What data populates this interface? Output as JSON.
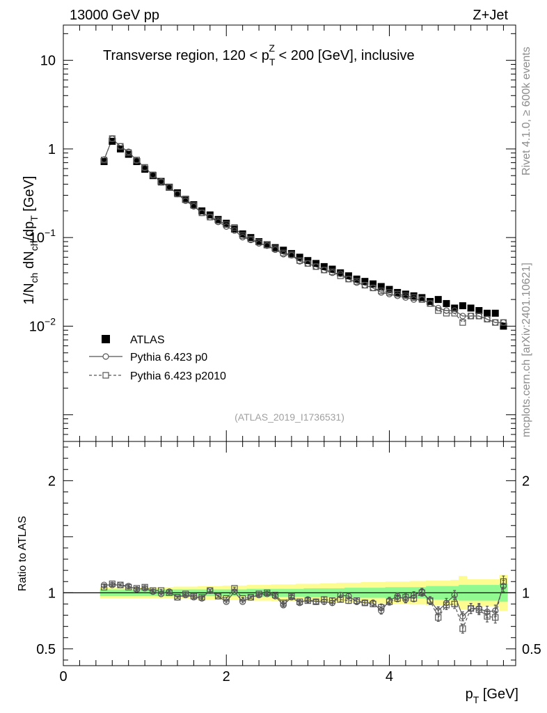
{
  "header": {
    "left": "13000 GeV pp",
    "right": "Z+Jet",
    "region_pre": "Transverse region, 120 < p",
    "region_sub": "T",
    "region_sup": "Z",
    "region_post": " < 200 [GeV], inclusive",
    "analysis": "(ATLAS_2019_I1736531)"
  },
  "sidebar": {
    "rivet": "Rivet 4.1.0, ≥ 600k events",
    "mcplots": "mcplots.cern.ch [arXiv:2401.10621]"
  },
  "colors": {
    "band_inner": "#90f990",
    "band_outer": "#fcfc90",
    "data": "#000000",
    "mc": "#555555"
  },
  "chart_data": [
    {
      "type": "scatter",
      "panel": "main",
      "ylabel_main": "1/N",
      "ylabel_sub1": "ch",
      "ylabel_mid": " dN",
      "ylabel_sub2": "ch",
      "ylabel_mid2": "/dp",
      "ylabel_sub3": "T",
      "ylabel_unit": " [GeV]",
      "yscale": "log",
      "ylim": [
        0.0005,
        25
      ],
      "xlim": [
        0,
        5.55
      ],
      "yticks": [
        {
          "v": 10,
          "base": "10",
          "exp": ""
        },
        {
          "v": 1,
          "base": "1",
          "exp": ""
        },
        {
          "v": 0.1,
          "base": "10",
          "exp": "−1"
        },
        {
          "v": 0.01,
          "base": "10",
          "exp": "−2"
        }
      ],
      "legend": {
        "position": "lower-left",
        "entries": [
          "ATLAS",
          "Pythia 6.423 p0",
          "Pythia 6.423 p2010"
        ]
      },
      "x": [
        0.5,
        0.6,
        0.7,
        0.8,
        0.9,
        1.0,
        1.1,
        1.2,
        1.3,
        1.4,
        1.5,
        1.6,
        1.7,
        1.8,
        1.9,
        2.0,
        2.1,
        2.2,
        2.3,
        2.4,
        2.5,
        2.6,
        2.7,
        2.8,
        2.9,
        3.0,
        3.1,
        3.2,
        3.3,
        3.4,
        3.5,
        3.6,
        3.7,
        3.8,
        3.9,
        4.0,
        4.1,
        4.2,
        4.3,
        4.4,
        4.5,
        4.6,
        4.7,
        4.8,
        4.9,
        5.0,
        5.1,
        5.2,
        5.3,
        5.4
      ],
      "series": [
        {
          "name": "ATLAS",
          "marker": "square-filled",
          "values": [
            0.72,
            1.22,
            1.0,
            0.87,
            0.72,
            0.59,
            0.5,
            0.43,
            0.37,
            0.32,
            0.27,
            0.235,
            0.2,
            0.18,
            0.16,
            0.145,
            0.125,
            0.11,
            0.1,
            0.09,
            0.083,
            0.077,
            0.072,
            0.066,
            0.06,
            0.055,
            0.051,
            0.047,
            0.044,
            0.04,
            0.037,
            0.034,
            0.032,
            0.03,
            0.028,
            0.026,
            0.024,
            0.023,
            0.022,
            0.021,
            0.019,
            0.02,
            0.018,
            0.016,
            0.017,
            0.016,
            0.015,
            0.014,
            0.014,
            0.01
          ]
        },
        {
          "name": "Pythia 6.423 p0",
          "marker": "circle-open",
          "line": "solid",
          "values": [
            0.76,
            1.3,
            1.07,
            0.93,
            0.74,
            0.61,
            0.51,
            0.43,
            0.37,
            0.31,
            0.26,
            0.225,
            0.19,
            0.17,
            0.15,
            0.133,
            0.12,
            0.101,
            0.094,
            0.086,
            0.081,
            0.073,
            0.065,
            0.063,
            0.054,
            0.051,
            0.047,
            0.043,
            0.04,
            0.039,
            0.034,
            0.031,
            0.029,
            0.027,
            0.024,
            0.023,
            0.022,
            0.021,
            0.02,
            0.02,
            0.018,
            0.016,
            0.015,
            0.015,
            0.013,
            0.013,
            0.013,
            0.012,
            0.011,
            0.011
          ]
        },
        {
          "name": "Pythia 6.423 p2010",
          "marker": "square-open",
          "line": "dashed",
          "values": [
            0.75,
            1.31,
            1.07,
            0.91,
            0.75,
            0.62,
            0.51,
            0.42,
            0.37,
            0.31,
            0.27,
            0.23,
            0.19,
            0.17,
            0.155,
            0.14,
            0.13,
            0.105,
            0.096,
            0.089,
            0.083,
            0.075,
            0.067,
            0.064,
            0.055,
            0.051,
            0.047,
            0.043,
            0.041,
            0.037,
            0.034,
            0.032,
            0.029,
            0.027,
            0.025,
            0.024,
            0.023,
            0.022,
            0.021,
            0.02,
            0.018,
            0.015,
            0.014,
            0.014,
            0.011,
            0.013,
            0.013,
            0.012,
            0.011,
            0.011
          ]
        }
      ]
    },
    {
      "type": "scatter",
      "panel": "ratio",
      "ylabel": "Ratio to ATLAS",
      "xlabel": "p",
      "xlabel_sub": "T",
      "xlabel_unit": " [GeV]",
      "ylim": [
        0.35,
        2.35
      ],
      "xlim": [
        0,
        5.55
      ],
      "yticks": [
        {
          "v": 0.5,
          "label": "0.5"
        },
        {
          "v": 1,
          "label": "1"
        },
        {
          "v": 2,
          "label": "2"
        }
      ],
      "xticks": [
        {
          "v": 0,
          "label": "0"
        },
        {
          "v": 2,
          "label": "2"
        },
        {
          "v": 4,
          "label": "4"
        }
      ],
      "x": [
        0.5,
        0.6,
        0.7,
        0.8,
        0.9,
        1.0,
        1.1,
        1.2,
        1.3,
        1.4,
        1.5,
        1.6,
        1.7,
        1.8,
        1.9,
        2.0,
        2.1,
        2.2,
        2.3,
        2.4,
        2.5,
        2.6,
        2.7,
        2.8,
        2.9,
        3.0,
        3.1,
        3.2,
        3.3,
        3.4,
        3.5,
        3.6,
        3.7,
        3.8,
        3.9,
        4.0,
        4.1,
        4.2,
        4.3,
        4.4,
        4.5,
        4.6,
        4.7,
        4.8,
        4.9,
        5.0,
        5.1,
        5.2,
        5.3,
        5.4
      ],
      "band_inner_halfwidth": [
        0.03,
        0.03,
        0.03,
        0.03,
        0.03,
        0.03,
        0.03,
        0.03,
        0.03,
        0.03,
        0.03,
        0.03,
        0.03,
        0.03,
        0.03,
        0.03,
        0.03,
        0.03,
        0.035,
        0.035,
        0.035,
        0.035,
        0.035,
        0.035,
        0.035,
        0.04,
        0.04,
        0.04,
        0.04,
        0.04,
        0.045,
        0.045,
        0.045,
        0.045,
        0.045,
        0.05,
        0.05,
        0.05,
        0.05,
        0.05,
        0.06,
        0.06,
        0.06,
        0.06,
        0.07,
        0.07,
        0.07,
        0.07,
        0.07,
        0.08
      ],
      "band_outer_halfwidth": [
        0.05,
        0.05,
        0.05,
        0.05,
        0.05,
        0.05,
        0.05,
        0.05,
        0.05,
        0.055,
        0.055,
        0.055,
        0.06,
        0.06,
        0.06,
        0.065,
        0.065,
        0.065,
        0.07,
        0.07,
        0.07,
        0.075,
        0.075,
        0.075,
        0.08,
        0.08,
        0.08,
        0.085,
        0.085,
        0.09,
        0.09,
        0.09,
        0.095,
        0.095,
        0.095,
        0.1,
        0.1,
        0.1,
        0.105,
        0.105,
        0.11,
        0.11,
        0.11,
        0.115,
        0.15,
        0.12,
        0.12,
        0.12,
        0.12,
        0.16
      ],
      "series": [
        {
          "name": "Pythia 6.423 p0",
          "values": [
            1.07,
            1.07,
            1.07,
            1.06,
            1.03,
            1.04,
            1.01,
            0.99,
            1.01,
            0.96,
            0.98,
            0.96,
            0.95,
            1.02,
            0.97,
            0.92,
            1.01,
            0.92,
            0.96,
            0.98,
            0.99,
            0.97,
            0.89,
            0.96,
            0.91,
            0.94,
            0.92,
            0.92,
            0.91,
            0.98,
            0.97,
            0.92,
            0.91,
            0.91,
            0.84,
            0.93,
            0.97,
            0.94,
            0.98,
            1.01,
            0.93,
            0.84,
            0.91,
            0.98,
            0.79,
            0.86,
            0.86,
            0.83,
            0.84,
            1.06
          ],
          "errors": [
            0.01,
            0.01,
            0.01,
            0.01,
            0.01,
            0.01,
            0.01,
            0.01,
            0.01,
            0.01,
            0.01,
            0.01,
            0.01,
            0.01,
            0.01,
            0.01,
            0.01,
            0.01,
            0.01,
            0.01,
            0.01,
            0.015,
            0.015,
            0.015,
            0.015,
            0.02,
            0.02,
            0.02,
            0.02,
            0.02,
            0.025,
            0.025,
            0.025,
            0.025,
            0.03,
            0.03,
            0.03,
            0.03,
            0.03,
            0.03,
            0.035,
            0.035,
            0.04,
            0.04,
            0.04,
            0.045,
            0.045,
            0.05,
            0.05,
            0.05
          ]
        },
        {
          "name": "Pythia 6.423 p2010",
          "values": [
            1.05,
            1.08,
            1.07,
            1.05,
            1.04,
            1.05,
            1.02,
            1.02,
            1.0,
            0.96,
            0.99,
            0.97,
            0.96,
            1.02,
            0.97,
            0.95,
            1.04,
            0.95,
            0.96,
            0.99,
            1.0,
            0.98,
            0.91,
            0.97,
            0.92,
            0.93,
            0.92,
            0.94,
            0.93,
            0.94,
            0.93,
            0.93,
            0.91,
            0.9,
            0.87,
            0.92,
            0.95,
            0.96,
            0.95,
            1.0,
            0.93,
            0.78,
            0.89,
            0.9,
            0.68,
            0.86,
            0.85,
            0.79,
            0.78,
            1.1
          ],
          "errors": [
            0.01,
            0.01,
            0.01,
            0.01,
            0.01,
            0.01,
            0.01,
            0.01,
            0.01,
            0.01,
            0.01,
            0.01,
            0.01,
            0.01,
            0.01,
            0.01,
            0.01,
            0.01,
            0.01,
            0.01,
            0.01,
            0.015,
            0.015,
            0.015,
            0.015,
            0.02,
            0.02,
            0.02,
            0.02,
            0.02,
            0.025,
            0.025,
            0.025,
            0.025,
            0.03,
            0.03,
            0.03,
            0.03,
            0.03,
            0.03,
            0.035,
            0.035,
            0.04,
            0.04,
            0.04,
            0.045,
            0.045,
            0.05,
            0.05,
            0.05
          ]
        }
      ]
    }
  ]
}
